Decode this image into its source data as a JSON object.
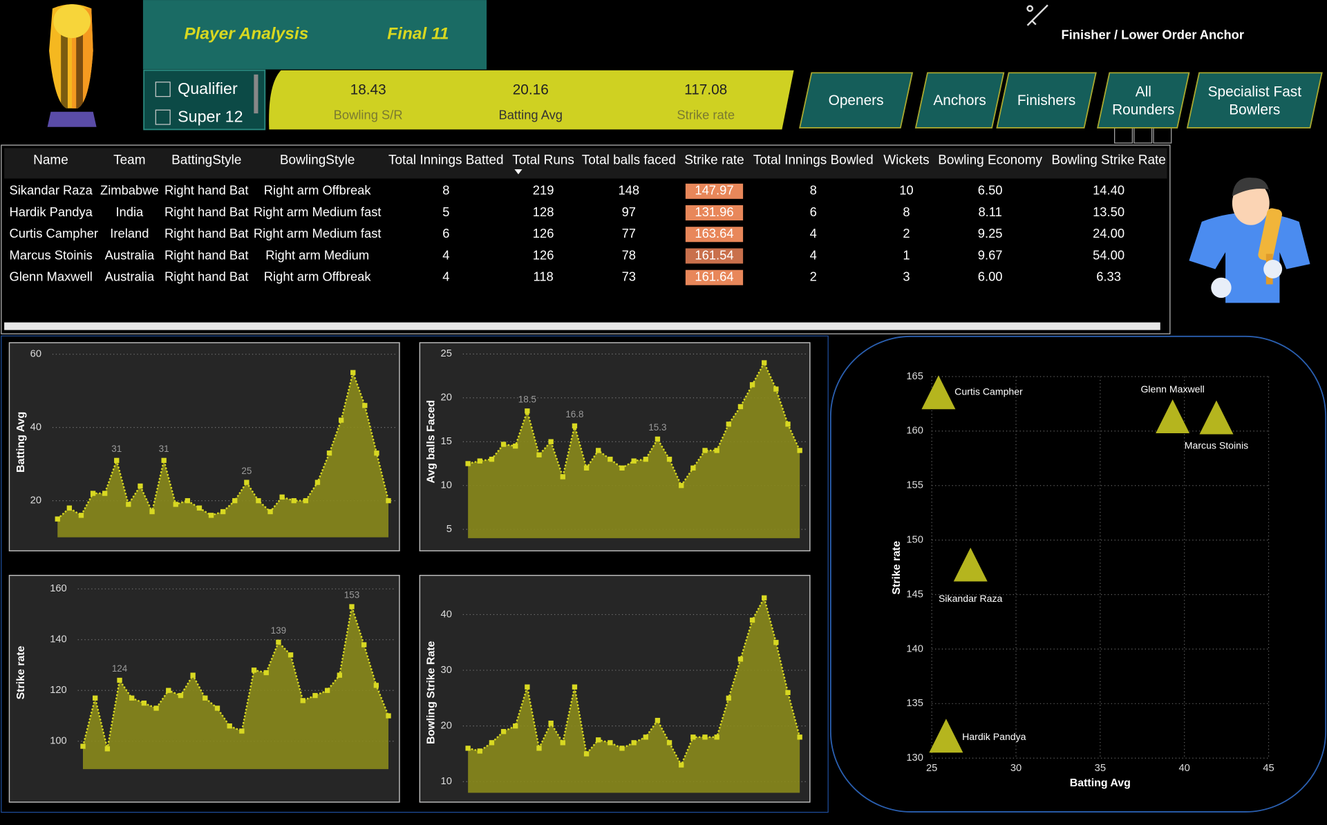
{
  "header": {
    "title": "Player Analysis",
    "subtitle": "Final 11",
    "role": "Finisher / Lower Order Anchor"
  },
  "filters": [
    "Qualifier",
    "Super 12"
  ],
  "kpis": [
    {
      "value": "18.43",
      "label": "Bowling S/R"
    },
    {
      "value": "20.16",
      "label": "Batting Avg"
    },
    {
      "value": "117.08",
      "label": "Strike rate"
    }
  ],
  "buttons": [
    "Openers",
    "Anchors",
    "Finishers",
    "All Rounders",
    "Specialist Fast Bowlers"
  ],
  "table": {
    "columns": [
      "Name",
      "Team",
      "BattingStyle",
      "BowlingStyle",
      "Total Innings Batted",
      "Total Runs",
      "Total balls faced",
      "Strike rate",
      "Total Innings Bowled",
      "Wickets",
      "Bowling Economy",
      "Bowling Strike Rate"
    ],
    "rows": [
      [
        "Sikandar Raza",
        "Zimbabwe",
        "Right hand Bat",
        "Right arm Offbreak",
        "8",
        "219",
        "148",
        "147.97",
        "8",
        "10",
        "6.50",
        "14.40"
      ],
      [
        "Hardik Pandya",
        "India",
        "Right hand Bat",
        "Right arm Medium fast",
        "5",
        "128",
        "97",
        "131.96",
        "6",
        "8",
        "8.11",
        "13.50"
      ],
      [
        "Curtis Campher",
        "Ireland",
        "Right hand Bat",
        "Right arm Medium fast",
        "6",
        "126",
        "77",
        "163.64",
        "4",
        "2",
        "9.25",
        "24.00"
      ],
      [
        "Marcus Stoinis",
        "Australia",
        "Right hand Bat",
        "Right arm Medium",
        "4",
        "126",
        "78",
        "161.54",
        "4",
        "1",
        "9.67",
        "54.00"
      ],
      [
        "Glenn Maxwell",
        "Australia",
        "Right hand Bat",
        "Right arm Offbreak",
        "4",
        "118",
        "73",
        "161.64",
        "2",
        "3",
        "6.00",
        "6.33"
      ]
    ]
  },
  "chart_data": [
    {
      "type": "area",
      "y_label": "Batting Avg",
      "color": "#d8d822",
      "fill": "#8a8a1c",
      "values": [
        15,
        18,
        16,
        22,
        22,
        31,
        19,
        24,
        17,
        31,
        19,
        20,
        18,
        16,
        17,
        20,
        25,
        20,
        17,
        21,
        20,
        20,
        25,
        33,
        42,
        55,
        46,
        33,
        20
      ],
      "value_labels": [
        null,
        null,
        null,
        null,
        null,
        "31",
        null,
        null,
        null,
        "31",
        null,
        null,
        null,
        null,
        null,
        null,
        "25",
        null,
        null,
        null,
        null,
        null,
        null,
        null,
        null,
        null,
        null,
        null,
        null
      ],
      "ylim": [
        10,
        62
      ],
      "yticks": [
        20,
        40,
        60
      ],
      "grid": true
    },
    {
      "type": "area",
      "y_label": "Avg balls Faced",
      "color": "#d8d822",
      "fill": "#8a8a1c",
      "values": [
        12.5,
        12.8,
        13,
        14.7,
        14.5,
        18.5,
        13.5,
        15,
        11,
        16.8,
        12,
        14,
        13,
        12,
        12.8,
        13,
        15.3,
        13,
        10,
        12,
        14,
        14,
        17,
        19,
        21.5,
        24,
        21,
        17,
        14
      ],
      "value_labels": [
        null,
        null,
        null,
        null,
        null,
        "18.5",
        null,
        null,
        null,
        "16.8",
        null,
        null,
        null,
        null,
        null,
        null,
        "15.3",
        null,
        null,
        null,
        null,
        null,
        null,
        null,
        null,
        null,
        null,
        null,
        null
      ],
      "ylim": [
        4,
        26
      ],
      "yticks": [
        5,
        10,
        15,
        20,
        25
      ],
      "grid": true
    },
    {
      "type": "area",
      "y_label": "Strike rate",
      "color": "#d8d822",
      "fill": "#8a8a1c",
      "values": [
        98,
        117,
        97,
        124,
        117,
        115,
        113,
        120,
        118,
        126,
        117,
        113,
        106,
        104,
        128,
        127,
        139,
        134,
        116,
        118,
        120,
        126,
        153,
        138,
        122,
        110
      ],
      "value_labels": [
        null,
        null,
        null,
        "124",
        null,
        null,
        null,
        null,
        null,
        null,
        null,
        null,
        null,
        null,
        null,
        null,
        "139",
        null,
        null,
        null,
        null,
        null,
        "153",
        null,
        null,
        null
      ],
      "ylim": [
        89,
        165
      ],
      "yticks": [
        100,
        120,
        140,
        160
      ],
      "grid": true
    },
    {
      "type": "area",
      "y_label": "Bowling Strike Rate",
      "color": "#d8d822",
      "fill": "#8a8a1c",
      "values": [
        16,
        15.5,
        17,
        19,
        20,
        27,
        16,
        20.5,
        17,
        27,
        15,
        17.5,
        17,
        16,
        17,
        18,
        21,
        17,
        13,
        18,
        18,
        18,
        25,
        32,
        39,
        43,
        35,
        26,
        18
      ],
      "value_labels": [
        null,
        null,
        null,
        null,
        null,
        null,
        null,
        null,
        null,
        null,
        null,
        null,
        null,
        null,
        null,
        null,
        null,
        null,
        null,
        null,
        null,
        null,
        null,
        null,
        null,
        null,
        null,
        null,
        null
      ],
      "ylim": [
        8,
        44
      ],
      "yticks": [
        10,
        20,
        30,
        40
      ],
      "grid": true
    },
    {
      "type": "scatter",
      "x_label": "Batting Avg",
      "y_label": "Strike rate",
      "color": "#b5b51e",
      "labels": [
        "Curtis Campher",
        "Glenn Maxwell",
        "Marcus Stoinis",
        "Sikandar Raza",
        "Hardik Pandya"
      ],
      "x": [
        25.4,
        39.3,
        41.9,
        27.3,
        25.85
      ],
      "values": [
        163.4,
        161.2,
        161.1,
        147.6,
        131.9
      ],
      "xlim": [
        25,
        45
      ],
      "xticks": [
        25,
        30,
        35,
        40,
        45
      ],
      "ylim": [
        130,
        165
      ],
      "yticks": [
        130,
        135,
        140,
        145,
        150,
        155,
        160,
        165
      ],
      "grid": true
    }
  ]
}
